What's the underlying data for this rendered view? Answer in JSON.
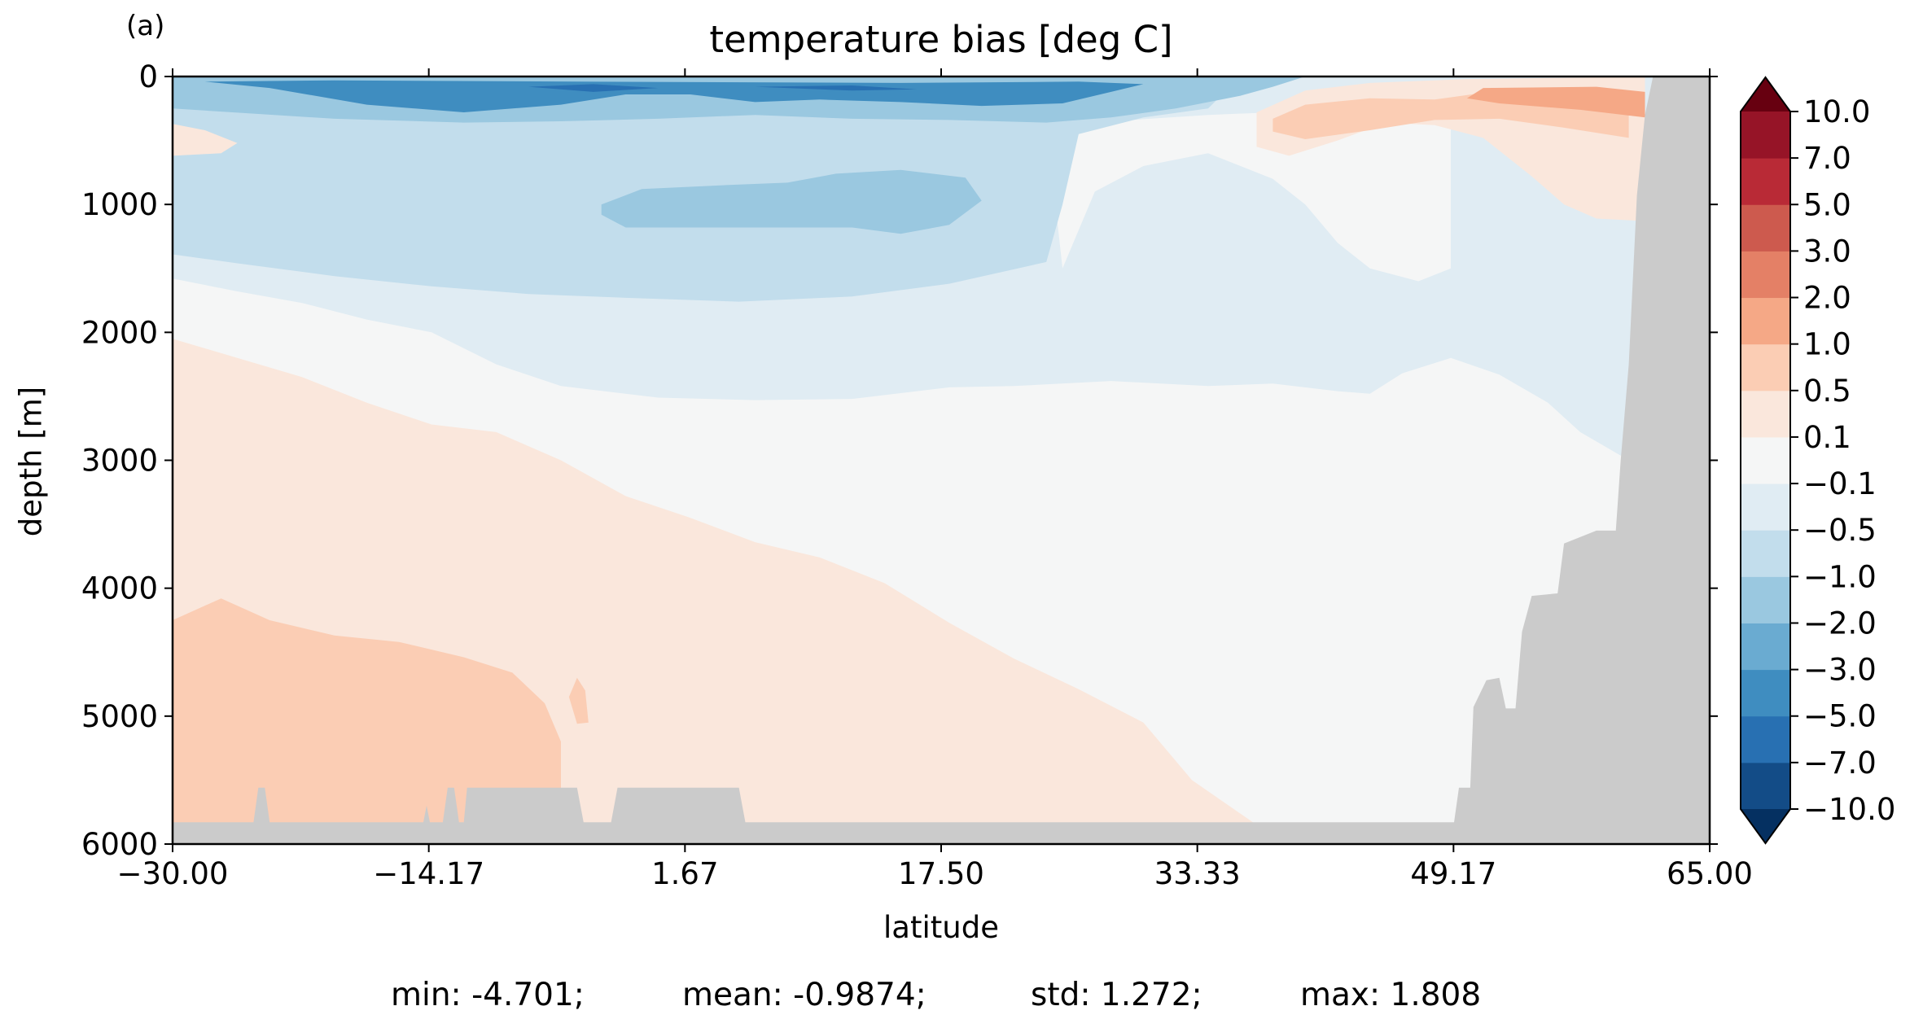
{
  "chart_data": {
    "type": "heatmap",
    "panel_label": "(a)",
    "title": "temperature bias [deg C]",
    "xlabel": "latitude",
    "ylabel": "depth [m]",
    "xlim": [
      -30,
      65
    ],
    "ylim": [
      6000,
      0
    ],
    "x_ticks": [
      "−30.00",
      "−14.17",
      "1.67",
      "17.50",
      "33.33",
      "49.17",
      "65.00"
    ],
    "y_ticks": [
      "0",
      "1000",
      "2000",
      "3000",
      "4000",
      "5000",
      "6000"
    ],
    "colorbar": {
      "levels": [
        "−10.0",
        "−7.0",
        "−5.0",
        "−3.0",
        "−2.0",
        "−1.0",
        "−0.5",
        "−0.1",
        "0.1",
        "0.5",
        "1.0",
        "2.0",
        "3.0",
        "5.0",
        "7.0",
        "10.0"
      ],
      "colors": [
        "#053061",
        "#134c87",
        "#2870b2",
        "#3f8dc0",
        "#6aabd1",
        "#9ac8e0",
        "#c2ddec",
        "#e0ecf3",
        "#f5f6f6",
        "#fae7dc",
        "#fbcdb4",
        "#f5a886",
        "#e48066",
        "#cd5a4e",
        "#b92a36",
        "#961427",
        "#670010"
      ],
      "extend": "both"
    },
    "land_color": "#cbcbcb",
    "field_summary": "Upper ocean (0–2000 m) cold bias, strongest near the surface (−3 to −5 °C) from −30 to 30°N; warm bias (0.5–3 °C) in the upper 1000 m north of ~38°N; weak warm bias (0.1–1 °C) in the deep ocean south of ~20°N; near-zero bias at depth in the north.",
    "stats": {
      "min": "min: -4.701;",
      "mean": "mean: -0.9874;",
      "std": "std: 1.272;",
      "max": "max: 1.808"
    }
  }
}
